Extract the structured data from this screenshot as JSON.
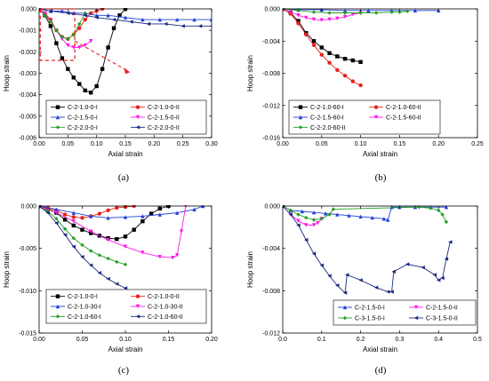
{
  "colors": {
    "black": "#000000",
    "red": "#e8201c",
    "blue": "#1f3fd8",
    "magenta": "#ff19e6",
    "green": "#22a022",
    "navy": "#1a2a80",
    "annotation": "#e8201c"
  },
  "chart_data": [
    {
      "type": "line",
      "caption": "(a)",
      "xlabel": "Axial strain",
      "ylabel": "Hoop strain",
      "xlim": [
        0,
        0.3
      ],
      "ylim": [
        -0.006,
        0
      ],
      "xticks": [
        "0.00",
        "0.05",
        "0.10",
        "0.15",
        "0.20",
        "0.25",
        "0.30"
      ],
      "yticks": [
        "0.000",
        "-0.001",
        "-0.002",
        "-0.003",
        "-0.004",
        "-0.005",
        "-0.006"
      ],
      "legend_position": "bottom-left",
      "legend_columns": 2,
      "annotation": "dashed-box-with-arrow",
      "series": [
        {
          "name": "C-2-1.0-0-I",
          "color": "#000000",
          "marker": "square",
          "x": [
            0,
            0.01,
            0.02,
            0.03,
            0.04,
            0.05,
            0.06,
            0.07,
            0.08,
            0.09,
            0.1,
            0.11,
            0.12,
            0.13,
            0.14,
            0.15
          ],
          "y": [
            0,
            -0.0003,
            -0.0008,
            -0.0016,
            -0.0023,
            -0.0028,
            -0.0032,
            -0.0035,
            -0.0038,
            -0.0039,
            -0.0036,
            -0.0028,
            -0.0018,
            -0.0009,
            -0.0003,
            0
          ]
        },
        {
          "name": "C-2-1.0-0-II",
          "color": "#e8201c",
          "marker": "circle",
          "x": [
            0,
            0.01,
            0.02,
            0.03,
            0.04,
            0.05,
            0.06,
            0.07,
            0.08,
            0.09,
            0.1,
            0.11
          ],
          "y": [
            0,
            -0.0002,
            -0.0005,
            -0.001,
            -0.0013,
            -0.0014,
            -0.0012,
            -0.0009,
            -0.0005,
            -0.0002,
            -0.0001,
            0
          ]
        },
        {
          "name": "C-2-1.5-0-I",
          "color": "#1f3fd8",
          "marker": "triangle-up",
          "x": [
            0,
            0.02,
            0.04,
            0.06,
            0.08,
            0.1,
            0.12,
            0.15,
            0.18,
            0.21,
            0.24,
            0.27,
            0.3
          ],
          "y": [
            0,
            -0.0001,
            -0.0001,
            -0.0002,
            -0.0002,
            -0.0003,
            -0.0003,
            -0.0004,
            -0.0005,
            -0.0005,
            -0.0005,
            -0.0005,
            -0.0005
          ]
        },
        {
          "name": "C-2-1.5-0-II",
          "color": "#ff19e6",
          "marker": "triangle-down",
          "x": [
            0,
            0.01,
            0.02,
            0.03,
            0.04,
            0.05,
            0.06,
            0.07,
            0.08,
            0.09
          ],
          "y": [
            0,
            -0.0002,
            -0.0006,
            -0.001,
            -0.0014,
            -0.0017,
            -0.0018,
            -0.0018,
            -0.0017,
            -0.0015
          ]
        },
        {
          "name": "C-2-2.0-0-I",
          "color": "#22a022",
          "marker": "diamond",
          "x": [
            0,
            0.01,
            0.02,
            0.03,
            0.04,
            0.05,
            0.06,
            0.07,
            0.08
          ],
          "y": [
            0,
            -0.0003,
            -0.0006,
            -0.001,
            -0.0013,
            -0.0014,
            -0.0012,
            -0.0007,
            -0.0002
          ]
        },
        {
          "name": "C-2-2.0-0-II",
          "color": "#1a2a80",
          "marker": "triangle-left",
          "x": [
            0,
            0.02,
            0.05,
            0.08,
            0.1,
            0.13,
            0.16,
            0.19,
            0.22,
            0.25,
            0.28,
            0.3
          ],
          "y": [
            0,
            -0.0001,
            -0.0002,
            -0.0003,
            -0.0004,
            -0.0005,
            -0.0006,
            -0.0007,
            -0.0007,
            -0.0008,
            -0.0008,
            -0.0008
          ]
        }
      ]
    },
    {
      "type": "line",
      "caption": "(b)",
      "xlabel": "Axial strain",
      "ylabel": "Hoop strain",
      "xlim": [
        0,
        0.25
      ],
      "ylim": [
        -0.016,
        0
      ],
      "xticks": [
        "0.00",
        "0.05",
        "0.10",
        "0.15",
        "0.20",
        "0.25"
      ],
      "yticks": [
        "0.000",
        "-0.004",
        "-0.008",
        "-0.012",
        "-0.016"
      ],
      "legend_position": "bottom-left",
      "legend_columns": 2,
      "series": [
        {
          "name": "C-2-1.0-60-I",
          "color": "#000000",
          "marker": "square",
          "x": [
            0,
            0.01,
            0.02,
            0.03,
            0.04,
            0.05,
            0.06,
            0.07,
            0.08,
            0.09,
            0.1
          ],
          "y": [
            0,
            -0.0005,
            -0.0015,
            -0.003,
            -0.004,
            -0.0048,
            -0.0055,
            -0.0059,
            -0.0062,
            -0.0064,
            -0.0066
          ]
        },
        {
          "name": "C-2-1.0-60-II",
          "color": "#e8201c",
          "marker": "circle",
          "x": [
            0,
            0.01,
            0.02,
            0.03,
            0.04,
            0.05,
            0.06,
            0.07,
            0.08,
            0.09,
            0.1
          ],
          "y": [
            0,
            -0.0006,
            -0.0018,
            -0.0032,
            -0.0045,
            -0.0057,
            -0.0067,
            -0.0076,
            -0.0083,
            -0.009,
            -0.0095
          ]
        },
        {
          "name": "C-2-1.5-60-I",
          "color": "#1f3fd8",
          "marker": "triangle-up",
          "x": [
            0,
            0.02,
            0.05,
            0.08,
            0.11,
            0.14,
            0.17,
            0.2
          ],
          "y": [
            0,
            -0.0001,
            -0.0001,
            -0.0002,
            -0.0002,
            -0.0002,
            -0.0002,
            -0.0002
          ]
        },
        {
          "name": "C-2-1.5-60-II",
          "color": "#ff19e6",
          "marker": "triangle-down",
          "x": [
            0,
            0.01,
            0.02,
            0.03,
            0.04,
            0.05,
            0.06,
            0.07,
            0.08,
            0.09,
            0.1
          ],
          "y": [
            0,
            -0.0004,
            -0.0008,
            -0.0011,
            -0.0013,
            -0.0014,
            -0.0013,
            -0.0012,
            -0.001,
            -0.0007,
            -0.0005
          ]
        },
        {
          "name": "C-2-2.0-60-II",
          "color": "#22a022",
          "marker": "diamond",
          "x": [
            0,
            0.02,
            0.04,
            0.06,
            0.08,
            0.1,
            0.12,
            0.14,
            0.15,
            0.16
          ],
          "y": [
            0,
            -0.0002,
            -0.0004,
            -0.0005,
            -0.0005,
            -0.0005,
            -0.0005,
            -0.0004,
            -0.0004,
            -0.0003
          ]
        }
      ]
    },
    {
      "type": "line",
      "caption": "(c)",
      "xlabel": "Axial strain",
      "ylabel": "Hoop strain",
      "xlim": [
        0,
        0.2
      ],
      "ylim": [
        -0.015,
        0
      ],
      "xticks": [
        "0.00",
        "0.05",
        "0.10",
        "0.15",
        "0.20"
      ],
      "yticks": [
        "0.000",
        "-0.005",
        "-0.010",
        "-0.015"
      ],
      "legend_position": "bottom-left",
      "legend_columns": 2,
      "series": [
        {
          "name": "C-2-1.0-0-I",
          "color": "#000000",
          "marker": "square",
          "x": [
            0,
            0.01,
            0.02,
            0.03,
            0.04,
            0.05,
            0.06,
            0.07,
            0.08,
            0.09,
            0.1,
            0.11,
            0.12,
            0.13,
            0.14,
            0.15
          ],
          "y": [
            0,
            -0.0003,
            -0.0008,
            -0.0016,
            -0.0023,
            -0.0028,
            -0.0032,
            -0.0035,
            -0.0038,
            -0.0039,
            -0.0036,
            -0.0028,
            -0.0018,
            -0.0009,
            -0.0003,
            0
          ]
        },
        {
          "name": "C-2-1.0-0-II",
          "color": "#e8201c",
          "marker": "circle",
          "x": [
            0,
            0.01,
            0.02,
            0.03,
            0.04,
            0.05,
            0.06,
            0.07,
            0.08,
            0.09,
            0.1,
            0.11
          ],
          "y": [
            0,
            -0.0002,
            -0.0005,
            -0.001,
            -0.0013,
            -0.0014,
            -0.0012,
            -0.0009,
            -0.0005,
            -0.0002,
            -0.0001,
            0
          ]
        },
        {
          "name": "C-2-1.0-30-I",
          "color": "#1f3fd8",
          "marker": "triangle-up",
          "x": [
            0,
            0.02,
            0.04,
            0.06,
            0.08,
            0.1,
            0.12,
            0.14,
            0.16,
            0.18,
            0.19
          ],
          "y": [
            0,
            -0.0004,
            -0.0008,
            -0.0012,
            -0.0014,
            -0.0013,
            -0.0012,
            -0.001,
            -0.0008,
            -0.0004,
            0
          ]
        },
        {
          "name": "C-2-1.0-30-II",
          "color": "#ff19e6",
          "marker": "triangle-down",
          "x": [
            0,
            0.02,
            0.04,
            0.06,
            0.08,
            0.1,
            0.12,
            0.14,
            0.155,
            0.16,
            0.165,
            0.17
          ],
          "y": [
            0,
            -0.0008,
            -0.0018,
            -0.003,
            -0.004,
            -0.0048,
            -0.0055,
            -0.006,
            -0.0061,
            -0.0058,
            -0.003,
            0
          ]
        },
        {
          "name": "C-2-1.0-60-I",
          "color": "#22a022",
          "marker": "diamond",
          "x": [
            0,
            0.01,
            0.02,
            0.03,
            0.04,
            0.05,
            0.06,
            0.07,
            0.08,
            0.09,
            0.1
          ],
          "y": [
            0,
            -0.0006,
            -0.0015,
            -0.0027,
            -0.0038,
            -0.0046,
            -0.0053,
            -0.0058,
            -0.0062,
            -0.0066,
            -0.0069
          ]
        },
        {
          "name": "C-2-1.0-60-II",
          "color": "#1a2a80",
          "marker": "triangle-left",
          "x": [
            0,
            0.01,
            0.02,
            0.03,
            0.04,
            0.05,
            0.06,
            0.07,
            0.08,
            0.09,
            0.1
          ],
          "y": [
            0,
            -0.0008,
            -0.002,
            -0.0034,
            -0.0048,
            -0.006,
            -0.007,
            -0.0079,
            -0.0086,
            -0.0092,
            -0.0097
          ]
        }
      ]
    },
    {
      "type": "line",
      "caption": "(d)",
      "xlabel": "Axial strain",
      "ylabel": "Hoop strain",
      "xlim": [
        0,
        0.5
      ],
      "ylim": [
        -0.012,
        0
      ],
      "xticks": [
        "0.0",
        "0.1",
        "0.2",
        "0.3",
        "0.4",
        "0.5"
      ],
      "yticks": [
        "0.000",
        "-0.004",
        "-0.008",
        "-0.012"
      ],
      "legend_position": "bottom-right",
      "legend_columns": 2,
      "series": [
        {
          "name": "C-2-1.5-0-I",
          "color": "#1f3fd8",
          "marker": "triangle-up",
          "x": [
            0,
            0.02,
            0.05,
            0.08,
            0.11,
            0.14,
            0.17,
            0.2,
            0.23,
            0.26,
            0.27,
            0.28,
            0.3,
            0.34,
            0.38,
            0.42
          ],
          "y": [
            0,
            -0.0004,
            -0.0005,
            -0.0006,
            -0.0007,
            -0.0008,
            -0.0009,
            -0.001,
            -0.0011,
            -0.0012,
            -0.0013,
            -0.0001,
            -0.0001,
            -0.0001,
            -0.0001,
            -0.0001
          ]
        },
        {
          "name": "C-2-1.5-0-II",
          "color": "#ff19e6",
          "marker": "triangle-down",
          "x": [
            0,
            0.02,
            0.04,
            0.06,
            0.08,
            0.09,
            0.1
          ],
          "y": [
            0,
            -0.0008,
            -0.0014,
            -0.0018,
            -0.0018,
            -0.0016,
            -0.0012
          ]
        },
        {
          "name": "C-3-1.5-0-I",
          "color": "#22a022",
          "marker": "diamond",
          "x": [
            0,
            0.02,
            0.04,
            0.06,
            0.08,
            0.1,
            0.12,
            0.13,
            0.35,
            0.38,
            0.4,
            0.41,
            0.42
          ],
          "y": [
            0,
            -0.0004,
            -0.0008,
            -0.0011,
            -0.0013,
            -0.0012,
            -0.0008,
            -0.0003,
            -0.0001,
            -0.0002,
            -0.0004,
            -0.0008,
            -0.0015
          ]
        },
        {
          "name": "C-3-1.5-0-II",
          "color": "#1a2a80",
          "marker": "triangle-left",
          "x": [
            0,
            0.02,
            0.04,
            0.06,
            0.08,
            0.1,
            0.12,
            0.14,
            0.16,
            0.165,
            0.2,
            0.24,
            0.27,
            0.28,
            0.285,
            0.32,
            0.36,
            0.39,
            0.4,
            0.41,
            0.42,
            0.43
          ],
          "y": [
            0,
            -0.0008,
            -0.0018,
            -0.0032,
            -0.0045,
            -0.0056,
            -0.0066,
            -0.0075,
            -0.0082,
            -0.0065,
            -0.007,
            -0.0077,
            -0.0081,
            -0.0081,
            -0.0062,
            -0.0055,
            -0.0058,
            -0.0065,
            -0.007,
            -0.0068,
            -0.005,
            -0.0034
          ]
        }
      ]
    }
  ]
}
